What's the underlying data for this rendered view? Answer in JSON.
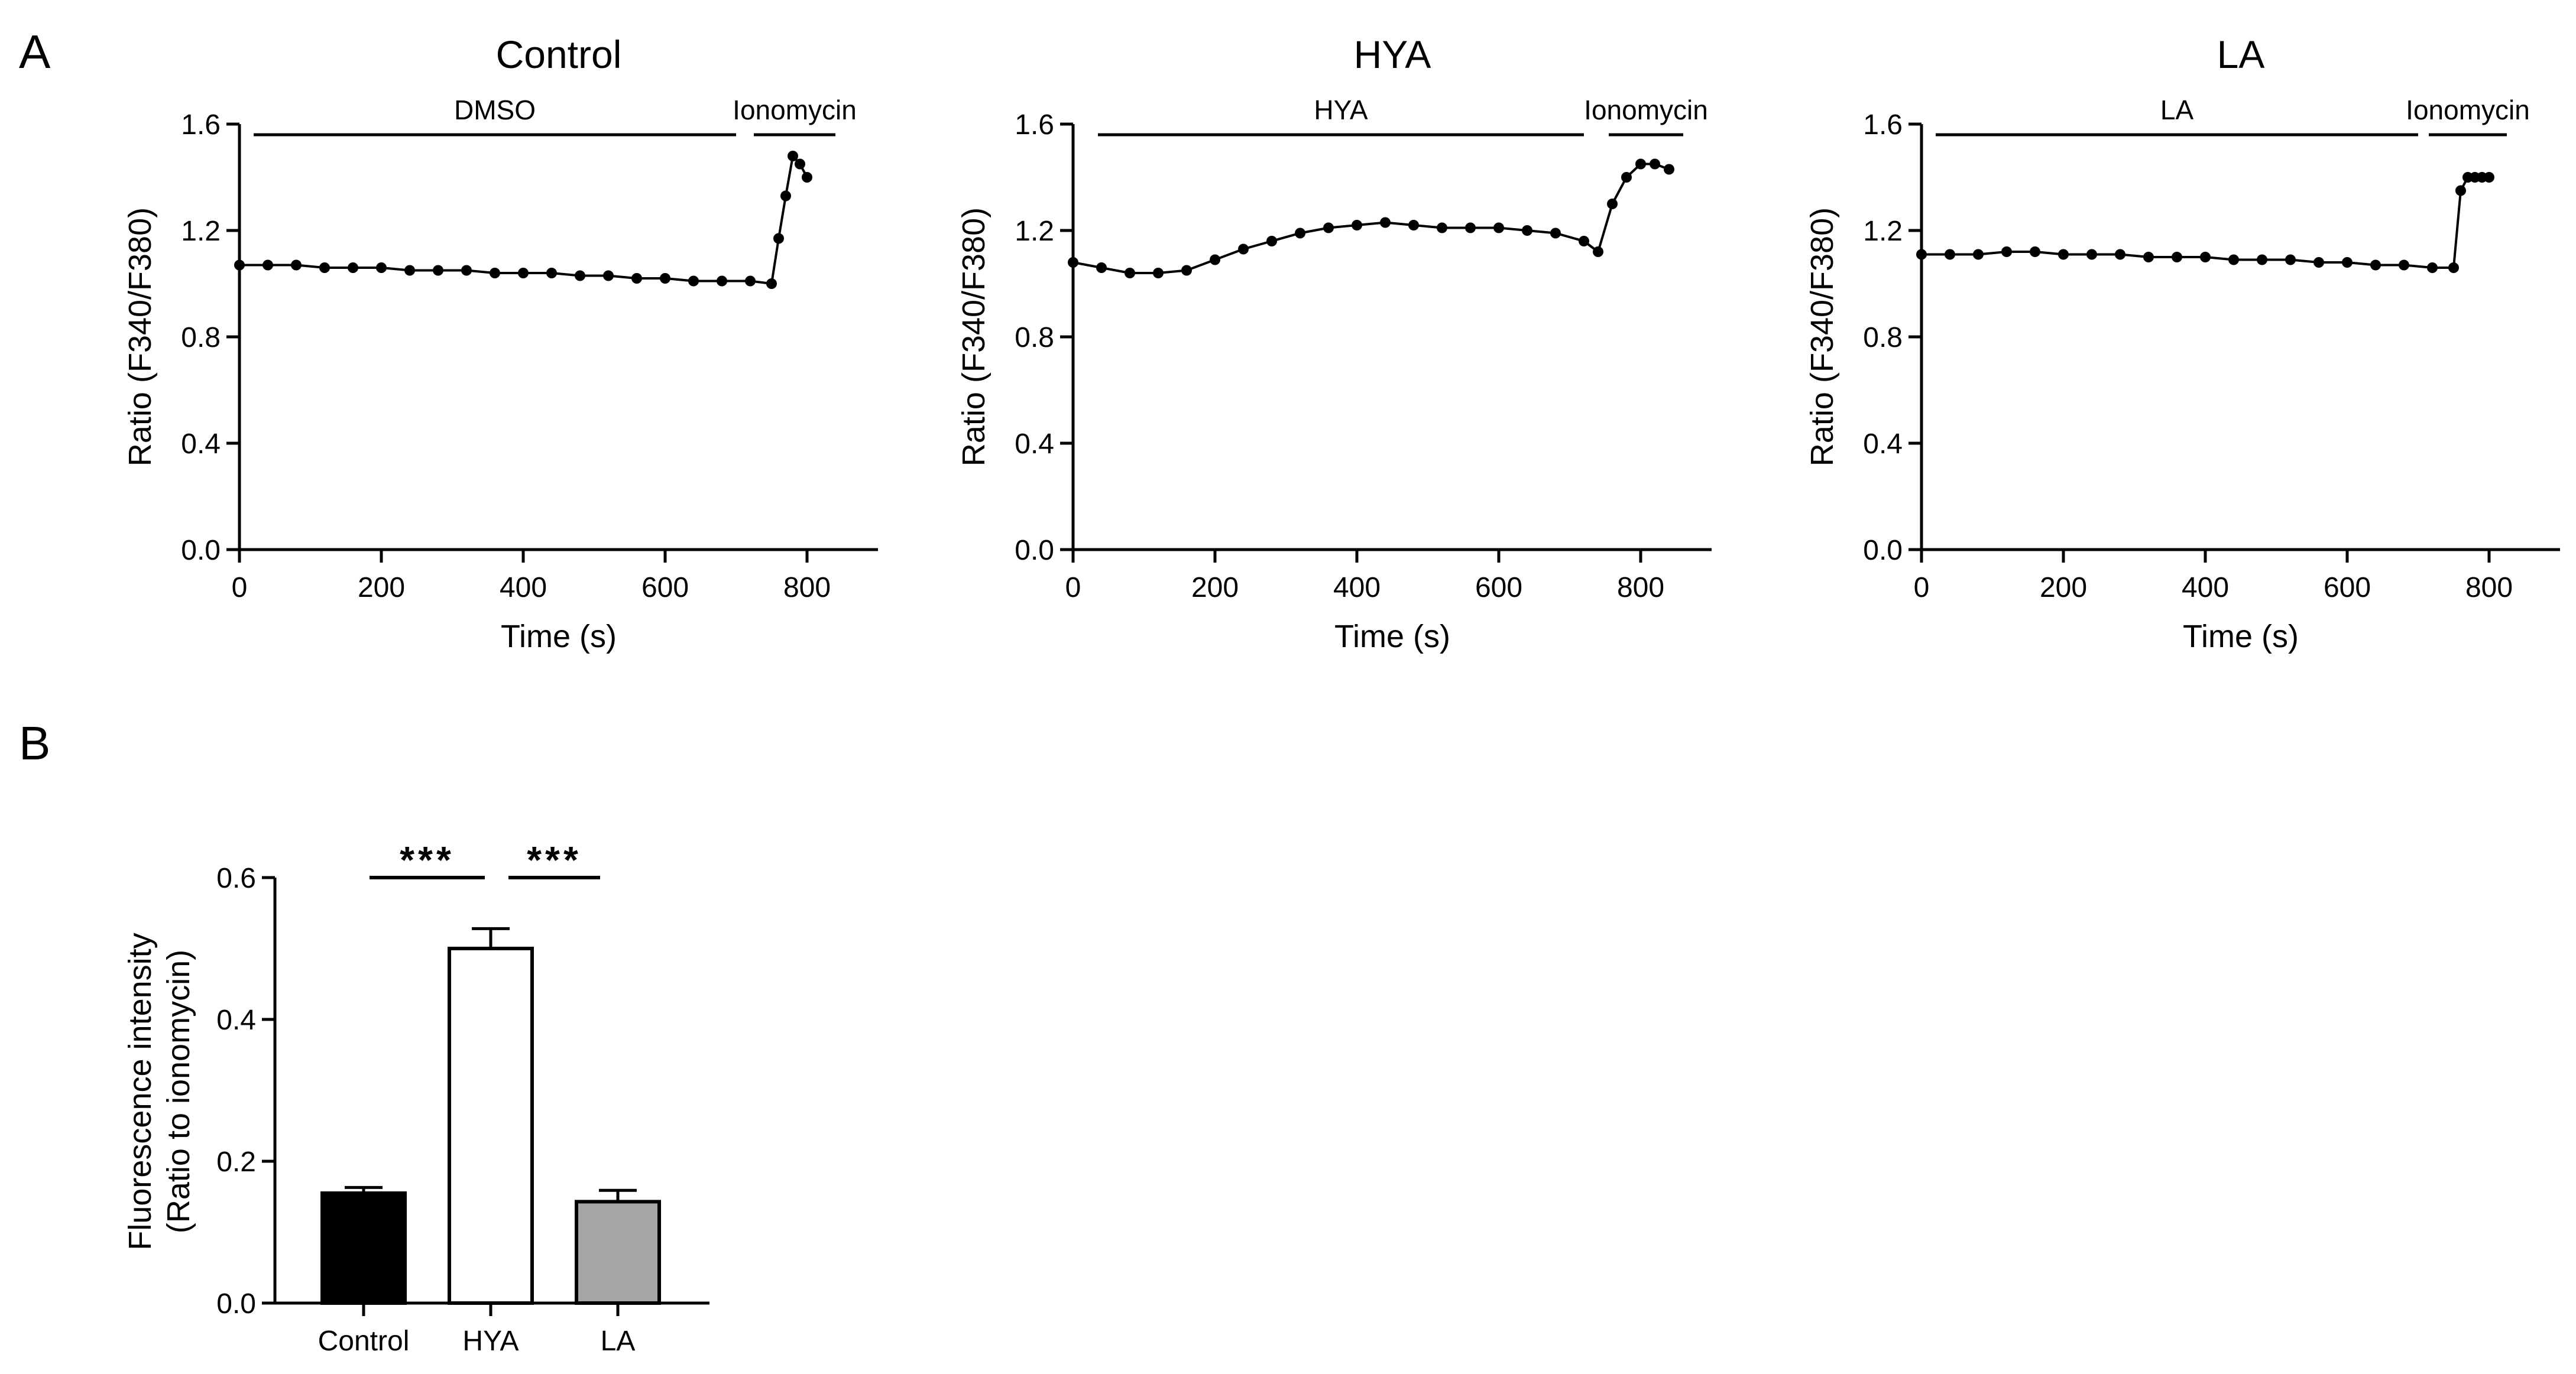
{
  "panel_labels": [
    "A",
    "B"
  ],
  "chart_data": [
    {
      "type": "line",
      "title": "Control",
      "xlabel": "Time (s)",
      "ylabel": "Ratio (F340/F380)",
      "xlim": [
        0,
        900
      ],
      "ylim": [
        0,
        1.6
      ],
      "xticks": [
        0,
        200,
        400,
        600,
        800
      ],
      "yticks": [
        0.0,
        0.4,
        0.8,
        1.2,
        1.6
      ],
      "treatments": [
        {
          "label": "DMSO",
          "start": 20,
          "end": 700
        },
        {
          "label": "Ionomycin",
          "start": 725,
          "end": 840
        }
      ],
      "series": [
        {
          "x": [
            0,
            40,
            80,
            120,
            160,
            200,
            240,
            280,
            320,
            360,
            400,
            440,
            480,
            520,
            560,
            600,
            640,
            680,
            720,
            750,
            760,
            770,
            780,
            790,
            800
          ],
          "y": [
            1.07,
            1.07,
            1.07,
            1.06,
            1.06,
            1.06,
            1.05,
            1.05,
            1.05,
            1.04,
            1.04,
            1.04,
            1.03,
            1.03,
            1.02,
            1.02,
            1.01,
            1.01,
            1.01,
            1.0,
            1.17,
            1.33,
            1.48,
            1.45,
            1.4
          ]
        }
      ]
    },
    {
      "type": "line",
      "title": "HYA",
      "xlabel": "Time (s)",
      "ylabel": "Ratio (F340/F380)",
      "xlim": [
        0,
        900
      ],
      "ylim": [
        0,
        1.6
      ],
      "xticks": [
        0,
        200,
        400,
        600,
        800
      ],
      "yticks": [
        0.0,
        0.4,
        0.8,
        1.2,
        1.6
      ],
      "treatments": [
        {
          "label": "HYA",
          "start": 35,
          "end": 720
        },
        {
          "label": "Ionomycin",
          "start": 755,
          "end": 860
        }
      ],
      "series": [
        {
          "x": [
            0,
            40,
            80,
            120,
            160,
            200,
            240,
            280,
            320,
            360,
            400,
            440,
            480,
            520,
            560,
            600,
            640,
            680,
            720,
            740,
            760,
            780,
            800,
            820,
            840
          ],
          "y": [
            1.08,
            1.06,
            1.04,
            1.04,
            1.05,
            1.09,
            1.13,
            1.16,
            1.19,
            1.21,
            1.22,
            1.23,
            1.22,
            1.21,
            1.21,
            1.21,
            1.2,
            1.19,
            1.16,
            1.12,
            1.3,
            1.4,
            1.45,
            1.45,
            1.43
          ]
        }
      ]
    },
    {
      "type": "line",
      "title": "LA",
      "xlabel": "Time (s)",
      "ylabel": "Ratio (F340/F380)",
      "xlim": [
        0,
        900
      ],
      "ylim": [
        0,
        1.6
      ],
      "xticks": [
        0,
        200,
        400,
        600,
        800
      ],
      "yticks": [
        0.0,
        0.4,
        0.8,
        1.2,
        1.6
      ],
      "treatments": [
        {
          "label": "LA",
          "start": 20,
          "end": 700
        },
        {
          "label": "Ionomycin",
          "start": 715,
          "end": 825
        }
      ],
      "series": [
        {
          "x": [
            0,
            40,
            80,
            120,
            160,
            200,
            240,
            280,
            320,
            360,
            400,
            440,
            480,
            520,
            560,
            600,
            640,
            680,
            720,
            750,
            760,
            770,
            780,
            790,
            800
          ],
          "y": [
            1.11,
            1.11,
            1.11,
            1.12,
            1.12,
            1.11,
            1.11,
            1.11,
            1.1,
            1.1,
            1.1,
            1.09,
            1.09,
            1.09,
            1.08,
            1.08,
            1.07,
            1.07,
            1.06,
            1.06,
            1.35,
            1.4,
            1.4,
            1.4,
            1.4
          ]
        }
      ]
    },
    {
      "type": "bar",
      "categories": [
        "Control",
        "HYA",
        "LA"
      ],
      "values": [
        0.155,
        0.5,
        0.143
      ],
      "errors": [
        0.008,
        0.028,
        0.016
      ],
      "colors": [
        "#000000",
        "#ffffff",
        "#a6a6a6"
      ],
      "ylabel_lines": [
        "Fluorescence intensity",
        "(Ratio to ionomycin)"
      ],
      "ylim": [
        0,
        0.6
      ],
      "yticks": [
        0.0,
        0.2,
        0.4,
        0.6
      ],
      "significance": [
        {
          "from": 0,
          "to": 1,
          "label": "***"
        },
        {
          "from": 1,
          "to": 2,
          "label": "***"
        }
      ]
    }
  ]
}
